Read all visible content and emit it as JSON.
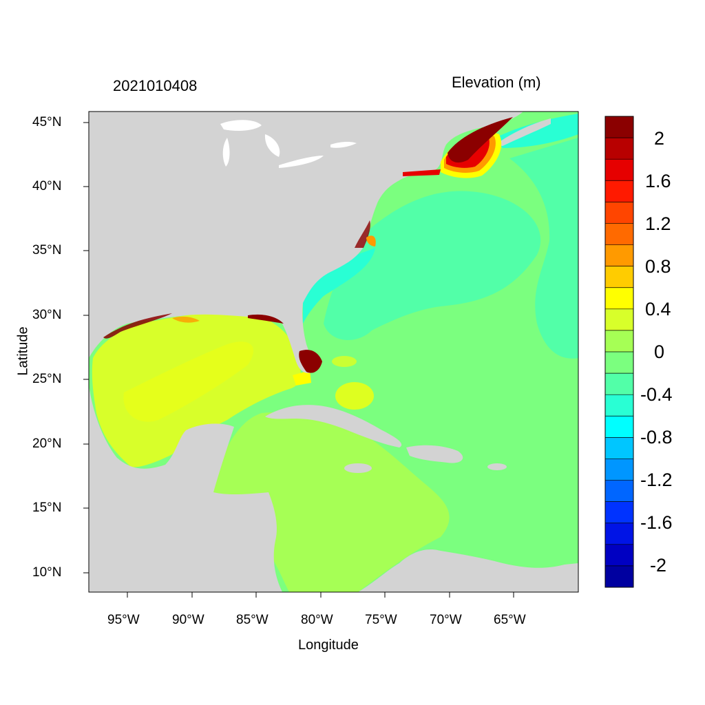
{
  "plot": {
    "timestamp": "2021010408",
    "variable_title": "Elevation (m)",
    "xlabel": "Longitude",
    "ylabel": "Latitude"
  },
  "axes": {
    "x_ticks": [
      "95°W",
      "90°W",
      "85°W",
      "80°W",
      "75°W",
      "70°W",
      "65°W"
    ],
    "y_ticks": [
      "45°N",
      "40°N",
      "35°N",
      "30°N",
      "25°N",
      "20°N",
      "15°N",
      "10°N"
    ],
    "lon_range": [
      -98,
      -60
    ],
    "lat_range": [
      8.5,
      45.8
    ]
  },
  "colorbar": {
    "labels": [
      "2",
      "1.6",
      "1.2",
      "0.8",
      "0.4",
      "0",
      "-0.4",
      "-0.8",
      "-1.2",
      "-1.6",
      "-2"
    ],
    "colors": [
      "#8b0000",
      "#b80000",
      "#e60000",
      "#ff1a00",
      "#ff4500",
      "#ff6a00",
      "#ff9a00",
      "#ffcc00",
      "#ffff00",
      "#d8ff2a",
      "#a6ff55",
      "#7bff7f",
      "#52ffa8",
      "#29ffd4",
      "#00ffff",
      "#00c6ff",
      "#0096ff",
      "#0066ff",
      "#0033ff",
      "#0014e6",
      "#0000c2",
      "#0000a0"
    ]
  },
  "palette": {
    "land": "#d3d3d3",
    "lake": "#ffffff",
    "ocean_neg_02": "#7bff7f",
    "ocean_neg_04": "#52ffa8",
    "ocean_neg_06": "#29ffd4",
    "gulf_02": "#d8ff2a",
    "carib_00": "#a6ff55",
    "yellow": "#ffff00",
    "orange": "#ff9a00",
    "red": "#e60000",
    "darkred": "#8b0000"
  }
}
